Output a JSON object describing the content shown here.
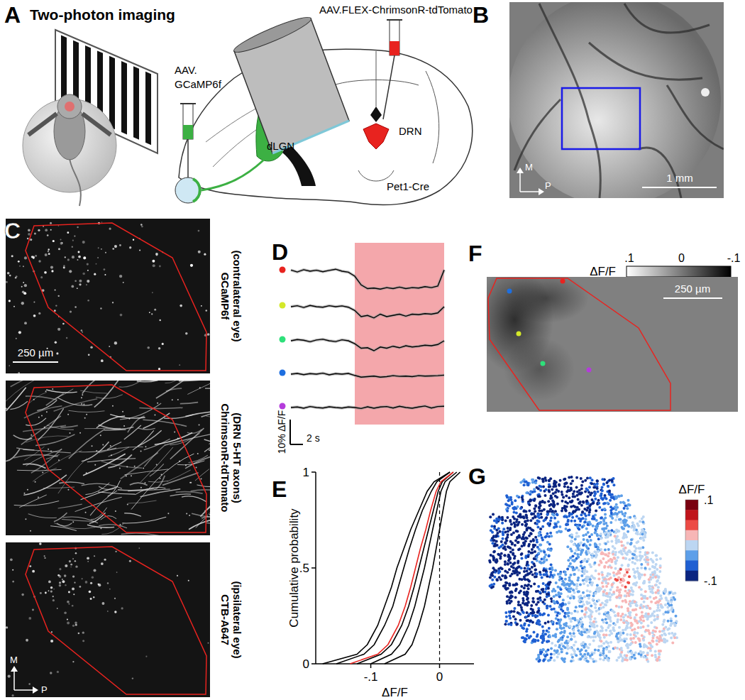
{
  "panel_a": {
    "letter": "A",
    "title": "Two-photon imaging",
    "virus_retina": [
      "AAV.",
      "GCaMP6f"
    ],
    "virus_drn": "AAV.FLEX-ChrimsonR-tdTomato",
    "lgn": "dLGN",
    "drn": "DRN",
    "mouse_line": "Pet1-Cre"
  },
  "panel_b": {
    "letter": "B",
    "scale_bar": "1 mm",
    "axis_labels": [
      "M",
      "P"
    ]
  },
  "panel_c": {
    "letter": "C",
    "scale_bar": "250 µm",
    "axis_labels": [
      "M",
      "P"
    ],
    "images": [
      {
        "label": "GCaMP6f",
        "note": "(contralateral eye)"
      },
      {
        "label": "ChrimsonR-tdTomato",
        "note": "(DRN 5-HT axons)"
      },
      {
        "label": "CTB-A647",
        "note": "(ipsilateral eye)"
      }
    ]
  },
  "panel_f": {
    "letter": "F",
    "colorbar_label": "ΔF/F",
    "scale_bar": "250 µm",
    "colorbar": {
      "range": [
        0.1,
        -0.1
      ],
      "ticks": [
        {
          "value": 0.1,
          "label": ".1"
        },
        0,
        {
          "value": -0.1,
          "label": "-.1"
        }
      ]
    }
  },
  "chart_data": [
    {
      "type": "line",
      "title": "D",
      "tick_labels": false,
      "x": [
        -10,
        -9,
        -8,
        -7,
        -6,
        -5,
        -4,
        -3,
        -2,
        -1,
        0,
        1,
        2,
        3,
        4,
        5,
        6,
        7,
        8,
        9,
        10,
        11,
        12,
        13,
        14
      ],
      "shade": [
        0,
        14
      ],
      "scale_bars": [
        {
          "value": 0.1,
          "label": "10% ΔF/F"
        },
        {
          "value": 2,
          "label": "2 s"
        }
      ],
      "series": [
        {
          "color": "#e8231f",
          "values": [
            0.005,
            -0.003,
            0.006,
            0.0,
            0.004,
            -0.002,
            0.003,
            0.008,
            0.0,
            -0.004,
            -0.02,
            -0.055,
            -0.07,
            -0.068,
            -0.072,
            -0.066,
            -0.07,
            -0.064,
            -0.07,
            -0.066,
            -0.068,
            -0.062,
            -0.066,
            -0.06,
            0.005
          ]
        },
        {
          "color": "#d4e82a",
          "values": [
            0.0,
            0.004,
            -0.003,
            0.005,
            0.0,
            -0.002,
            0.004,
            0.0,
            0.003,
            -0.002,
            -0.015,
            -0.04,
            -0.035,
            -0.045,
            -0.03,
            -0.04,
            -0.035,
            -0.03,
            -0.038,
            -0.03,
            -0.032,
            -0.028,
            -0.03,
            -0.025,
            0.0
          ]
        },
        {
          "color": "#2ee07a",
          "values": [
            0.0,
            0.005,
            0.002,
            -0.004,
            0.003,
            0.006,
            0.0,
            -0.003,
            0.004,
            0.0,
            -0.012,
            -0.03,
            -0.028,
            -0.04,
            -0.025,
            -0.03,
            -0.022,
            -0.028,
            -0.02,
            -0.025,
            -0.022,
            -0.018,
            -0.02,
            -0.015,
            0.0
          ]
        },
        {
          "color": "#1e6fe0",
          "values": [
            0.0,
            0.003,
            -0.002,
            0.002,
            0.0,
            0.004,
            -0.003,
            0.002,
            0.0,
            0.003,
            -0.005,
            -0.012,
            -0.01,
            -0.008,
            -0.012,
            -0.01,
            -0.006,
            -0.009,
            -0.008,
            -0.01,
            -0.006,
            -0.008,
            -0.007,
            -0.006,
            -0.004
          ]
        },
        {
          "color": "#b43cdb",
          "values": [
            0.0,
            0.002,
            -0.003,
            0.004,
            0.0,
            -0.002,
            0.003,
            0.0,
            -0.002,
            0.002,
            0.0,
            -0.004,
            0.003,
            -0.003,
            0.002,
            0.004,
            -0.002,
            0.005,
            0.0,
            -0.003,
            0.002,
            0.006,
            -0.002,
            0.004,
            0.005
          ]
        }
      ]
    },
    {
      "type": "line",
      "title": "E",
      "x_label": "ΔF/F",
      "y_label": "Cumulative probability",
      "xlim": [
        -0.18,
        0.05
      ],
      "ylim": [
        0,
        1
      ],
      "xticks": [
        {
          "value": -0.1,
          "label": "-.1"
        },
        0
      ],
      "yticks": [
        0,
        {
          "value": 0.5,
          "label": ".5"
        },
        1
      ],
      "vline": 0,
      "series": [
        {
          "color": "#000000",
          "x": [
            -0.17,
            -0.12,
            -0.105,
            -0.09,
            -0.08,
            -0.07,
            -0.062,
            -0.052,
            -0.042,
            -0.03,
            -0.018,
            -0.008,
            0.015
          ],
          "values": [
            0,
            0.05,
            0.1,
            0.2,
            0.3,
            0.4,
            0.5,
            0.6,
            0.7,
            0.8,
            0.9,
            0.95,
            1
          ]
        },
        {
          "color": "#000000",
          "x": [
            -0.15,
            -0.11,
            -0.095,
            -0.08,
            -0.068,
            -0.06,
            -0.052,
            -0.044,
            -0.035,
            -0.025,
            -0.012,
            -0.004,
            0.015
          ],
          "values": [
            0,
            0.05,
            0.1,
            0.2,
            0.3,
            0.4,
            0.5,
            0.6,
            0.7,
            0.8,
            0.9,
            0.95,
            1
          ]
        },
        {
          "color": "#000000",
          "x": [
            -0.12,
            -0.085,
            -0.07,
            -0.055,
            -0.045,
            -0.037,
            -0.03,
            -0.023,
            -0.016,
            -0.009,
            -0.002,
            0.004,
            0.02
          ],
          "values": [
            0,
            0.05,
            0.1,
            0.2,
            0.3,
            0.4,
            0.5,
            0.6,
            0.7,
            0.8,
            0.9,
            0.95,
            1
          ]
        },
        {
          "color": "#000000",
          "x": [
            -0.1,
            -0.07,
            -0.058,
            -0.045,
            -0.036,
            -0.029,
            -0.022,
            -0.016,
            -0.01,
            -0.004,
            0.002,
            0.008,
            0.025
          ],
          "values": [
            0,
            0.05,
            0.1,
            0.2,
            0.3,
            0.4,
            0.5,
            0.6,
            0.7,
            0.8,
            0.9,
            0.95,
            1
          ]
        },
        {
          "color": "#000000",
          "x": [
            -0.08,
            -0.05,
            -0.04,
            -0.03,
            -0.022,
            -0.016,
            -0.01,
            -0.005,
            0.0,
            0.005,
            0.01,
            0.015,
            0.03
          ],
          "values": [
            0,
            0.05,
            0.1,
            0.2,
            0.3,
            0.4,
            0.5,
            0.6,
            0.7,
            0.8,
            0.9,
            0.95,
            1
          ]
        },
        {
          "color": "#e8231f",
          "x": [
            -0.13,
            -0.09,
            -0.075,
            -0.06,
            -0.05,
            -0.042,
            -0.035,
            -0.028,
            -0.02,
            -0.013,
            -0.005,
            0.002,
            0.02
          ],
          "values": [
            0,
            0.05,
            0.1,
            0.2,
            0.3,
            0.4,
            0.5,
            0.6,
            0.7,
            0.8,
            0.9,
            0.95,
            1
          ]
        }
      ]
    },
    {
      "type": "heatmap",
      "title": "G",
      "tick_labels": false,
      "colorbar_label": "ΔF/F",
      "colorbar": {
        "range": [
          -0.1,
          0.1
        ],
        "ticks": [
          {
            "value": 0.1,
            "label": ".1"
          },
          {
            "value": -0.1,
            "label": "-.1"
          }
        ]
      },
      "cells": [
        [
          null,
          null,
          -0.05,
          -0.08,
          -0.09,
          -0.09,
          -0.08,
          -0.07,
          null,
          null,
          null,
          null
        ],
        [
          null,
          -0.06,
          -0.08,
          -0.09,
          -0.1,
          -0.09,
          -0.08,
          -0.06,
          -0.04,
          null,
          null,
          null
        ],
        [
          -0.07,
          -0.09,
          -0.1,
          -0.07,
          -0.05,
          -0.06,
          -0.05,
          -0.04,
          -0.03,
          -0.02,
          null,
          null
        ],
        [
          -0.08,
          -0.1,
          -0.09,
          -0.05,
          null,
          -0.03,
          -0.04,
          -0.02,
          -0.01,
          -0.02,
          null,
          null
        ],
        [
          -0.09,
          -0.1,
          -0.08,
          -0.05,
          null,
          -0.04,
          -0.02,
          0.01,
          -0.01,
          -0.02,
          -0.01,
          null
        ],
        [
          -0.08,
          -0.1,
          -0.09,
          -0.07,
          -0.04,
          -0.03,
          -0.02,
          0.0,
          0.02,
          -0.01,
          -0.01,
          null
        ],
        [
          null,
          -0.09,
          -0.09,
          -0.08,
          -0.05,
          -0.03,
          -0.02,
          -0.01,
          0.01,
          -0.01,
          0.0,
          -0.02
        ],
        [
          null,
          -0.07,
          -0.08,
          -0.07,
          -0.05,
          -0.03,
          -0.01,
          -0.02,
          0.0,
          0.01,
          -0.01,
          -0.02
        ],
        [
          null,
          null,
          -0.06,
          -0.06,
          -0.04,
          -0.03,
          -0.02,
          -0.01,
          -0.02,
          0.0,
          0.01,
          -0.01
        ],
        [
          null,
          null,
          null,
          -0.05,
          -0.03,
          -0.02,
          -0.03,
          -0.02,
          -0.01,
          -0.02,
          0.0,
          null
        ]
      ]
    }
  ]
}
